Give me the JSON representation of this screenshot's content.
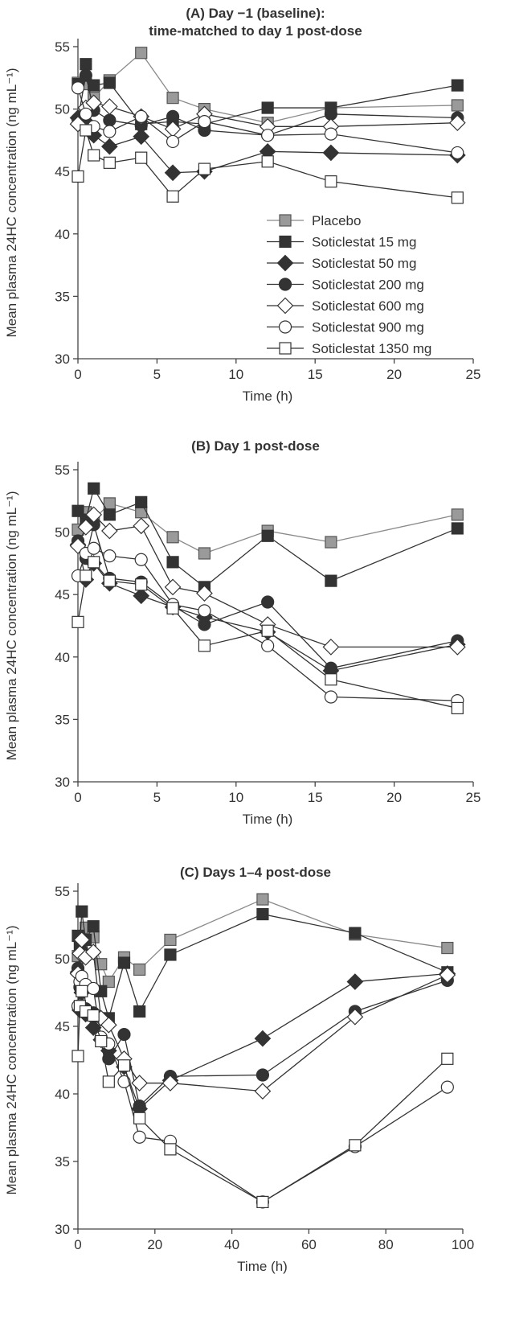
{
  "chart_data": [
    {
      "type": "line",
      "title": [
        "(A) Day −1 (baseline):",
        "time-matched to day 1 post-dose"
      ],
      "xlabel": "Time (h)",
      "ylabel": "Mean plasma 24HC concentration (ng mL⁻¹)",
      "xlim": [
        0,
        25
      ],
      "ylim": [
        30,
        55
      ],
      "xticks": [
        0,
        5,
        10,
        15,
        20,
        25
      ],
      "yticks": [
        30,
        35,
        40,
        45,
        50,
        55
      ],
      "legend_position": "bottom-right",
      "x": [
        0,
        0.5,
        1,
        2,
        4,
        6,
        8,
        12,
        16,
        24
      ],
      "series": [
        {
          "name": "Placebo",
          "values": [
            52.1,
            52.0,
            50.9,
            52.3,
            54.5,
            50.9,
            50.0,
            48.9,
            50.1,
            50.3
          ]
        },
        {
          "name": "Soticlestat 15 mg",
          "values": [
            52.0,
            53.6,
            51.9,
            52.1,
            48.8,
            49.0,
            48.8,
            50.1,
            50.1,
            51.9
          ]
        },
        {
          "name": "Soticlestat 50 mg",
          "values": [
            49.3,
            49.0,
            47.9,
            47.0,
            47.8,
            44.9,
            45.0,
            46.6,
            46.5,
            46.3
          ]
        },
        {
          "name": "Soticlestat 200 mg",
          "values": [
            49.2,
            52.7,
            49.9,
            49.1,
            48.7,
            49.4,
            48.3,
            47.9,
            49.6,
            49.3
          ]
        },
        {
          "name": "Soticlestat 600 mg",
          "values": [
            48.8,
            50.1,
            50.5,
            50.2,
            49.4,
            48.4,
            49.6,
            48.6,
            48.6,
            48.9
          ]
        },
        {
          "name": "Soticlestat 900 mg",
          "values": [
            51.7,
            49.6,
            48.6,
            48.2,
            49.4,
            47.4,
            49.0,
            47.9,
            48.0,
            46.5
          ]
        },
        {
          "name": "Soticlestat 1350 mg",
          "values": [
            44.6,
            48.3,
            46.3,
            45.7,
            46.1,
            43.0,
            45.2,
            45.8,
            44.2,
            42.9
          ]
        }
      ]
    },
    {
      "type": "line",
      "title": [
        "(B) Day 1 post-dose"
      ],
      "xlabel": "Time (h)",
      "ylabel": "Mean plasma 24HC concentration (ng mL⁻¹)",
      "xlim": [
        0,
        25
      ],
      "ylim": [
        30,
        55
      ],
      "xticks": [
        0,
        5,
        10,
        15,
        20,
        25
      ],
      "yticks": [
        30,
        35,
        40,
        45,
        50,
        55
      ],
      "x": [
        0,
        0.5,
        1,
        2,
        4,
        6,
        8,
        12,
        16,
        24
      ],
      "series": [
        {
          "name": "Placebo",
          "values": [
            50.2,
            51.6,
            51.0,
            52.3,
            51.6,
            49.6,
            48.3,
            50.1,
            49.2,
            51.4
          ]
        },
        {
          "name": "Soticlestat 15 mg",
          "values": [
            51.7,
            51.0,
            53.5,
            51.4,
            52.4,
            47.6,
            45.6,
            49.7,
            46.1,
            50.3
          ]
        },
        {
          "name": "Soticlestat 50 mg",
          "values": [
            49.0,
            46.2,
            47.5,
            45.9,
            44.9,
            44.0,
            43.2,
            42.0,
            38.9,
            41.0
          ]
        },
        {
          "name": "Soticlestat 200 mg",
          "values": [
            49.3,
            47.9,
            50.6,
            46.3,
            46.0,
            44.1,
            42.6,
            44.4,
            39.1,
            41.3
          ]
        },
        {
          "name": "Soticlestat 600 mg",
          "values": [
            48.9,
            50.4,
            51.4,
            50.1,
            50.5,
            45.6,
            45.1,
            42.6,
            40.8,
            40.8
          ]
        },
        {
          "name": "Soticlestat 900 mg",
          "values": [
            46.5,
            48.3,
            48.7,
            48.1,
            47.8,
            44.2,
            43.7,
            40.9,
            36.8,
            36.5
          ]
        },
        {
          "name": "Soticlestat 1350 mg",
          "values": [
            42.8,
            46.5,
            47.6,
            46.1,
            45.8,
            43.9,
            40.9,
            42.1,
            38.2,
            35.9
          ]
        }
      ]
    },
    {
      "type": "line",
      "title": [
        "(C) Days 1–4 post-dose"
      ],
      "xlabel": "Time (h)",
      "ylabel": "Mean plasma 24HC concentration (ng mL⁻¹)",
      "xlim": [
        0,
        100
      ],
      "ylim": [
        30,
        55
      ],
      "xticks": [
        0,
        20,
        40,
        60,
        80,
        100
      ],
      "yticks": [
        30,
        35,
        40,
        45,
        50,
        55
      ],
      "x": [
        0,
        0.5,
        1,
        2,
        4,
        6,
        8,
        12,
        16,
        24,
        48,
        72,
        96
      ],
      "series": [
        {
          "name": "Placebo",
          "values": [
            50.2,
            51.6,
            51.0,
            52.3,
            51.6,
            49.6,
            48.3,
            50.1,
            49.2,
            51.4,
            54.4,
            51.8,
            50.8
          ]
        },
        {
          "name": "Soticlestat 15 mg",
          "values": [
            51.7,
            51.0,
            53.5,
            51.4,
            52.4,
            47.6,
            45.6,
            49.7,
            46.1,
            50.3,
            53.3,
            51.9,
            49.0
          ]
        },
        {
          "name": "Soticlestat 50 mg",
          "values": [
            49.0,
            46.2,
            47.5,
            45.9,
            44.9,
            44.0,
            43.2,
            42.0,
            38.9,
            41.0,
            44.1,
            48.3,
            48.9
          ]
        },
        {
          "name": "Soticlestat 200 mg",
          "values": [
            49.3,
            47.9,
            50.6,
            46.3,
            46.0,
            44.1,
            42.6,
            44.4,
            39.1,
            41.3,
            41.4,
            46.1,
            48.4
          ]
        },
        {
          "name": "Soticlestat 600 mg",
          "values": [
            48.9,
            50.4,
            51.4,
            50.1,
            50.5,
            45.6,
            45.1,
            42.6,
            40.8,
            40.8,
            40.2,
            45.7,
            48.8
          ]
        },
        {
          "name": "Soticlestat 900 mg",
          "values": [
            46.5,
            48.3,
            48.7,
            48.1,
            47.8,
            44.2,
            43.7,
            40.9,
            36.8,
            36.5,
            32.0,
            36.1,
            40.5
          ]
        },
        {
          "name": "Soticlestat 1350 mg",
          "values": [
            42.8,
            46.5,
            47.6,
            46.1,
            45.8,
            43.9,
            40.9,
            42.1,
            38.2,
            35.9,
            32.0,
            36.2,
            42.6
          ]
        }
      ]
    }
  ],
  "styles": {
    "markers": [
      "square-gray",
      "square-filled",
      "diamond-filled",
      "circle-filled",
      "diamond-open",
      "circle-open",
      "square-open"
    ],
    "colors": {
      "placebo_fill": "#9a9a9a",
      "placebo_line": "#8a8a8a",
      "dark": "#333333",
      "open_fill": "#ffffff"
    }
  }
}
